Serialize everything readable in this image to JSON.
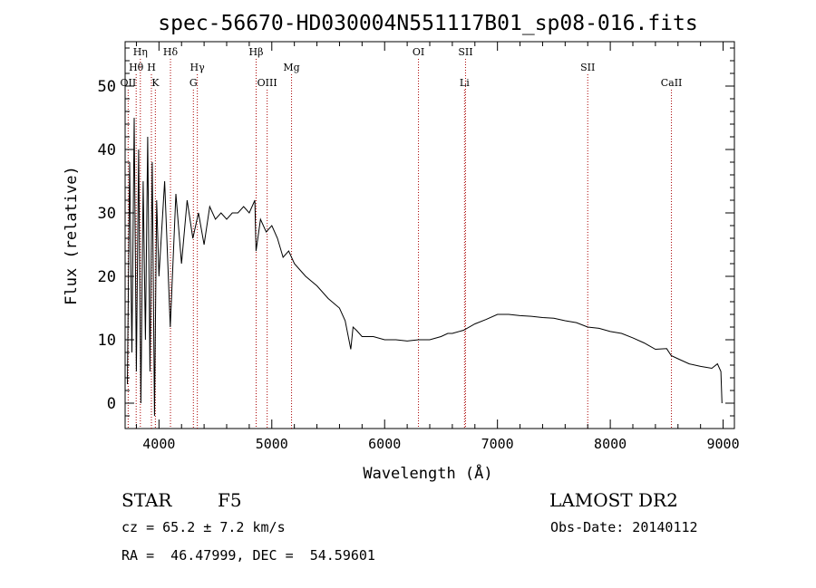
{
  "chart_data": {
    "type": "line",
    "title": "spec-56670-HD030004N551117B01_sp08-016.fits",
    "xlabel": "Wavelength (Å)",
    "ylabel": "Flux (relative)",
    "xlim": [
      3700,
      9100
    ],
    "ylim": [
      -4,
      57
    ],
    "x_ticks": [
      4000,
      5000,
      6000,
      7000,
      8000,
      9000
    ],
    "y_ticks": [
      0,
      10,
      20,
      30,
      40,
      50
    ],
    "grid": false,
    "series": [
      {
        "x": [
          3720,
          3740,
          3760,
          3780,
          3800,
          3820,
          3840,
          3860,
          3880,
          3900,
          3920,
          3940,
          3960,
          3980,
          4000,
          4050,
          4100,
          4150,
          4200,
          4250,
          4300,
          4350,
          4400,
          4450,
          4500,
          4550,
          4600,
          4650,
          4700,
          4750,
          4800,
          4850,
          4860,
          4900,
          4950,
          5000,
          5050,
          5100,
          5150,
          5200,
          5250,
          5300,
          5400,
          5500,
          5600,
          5650,
          5700,
          5720,
          5750,
          5800,
          5900,
          6000,
          6100,
          6200,
          6300,
          6400,
          6500,
          6560,
          6600,
          6700,
          6800,
          6900,
          7000,
          7100,
          7200,
          7300,
          7400,
          7500,
          7600,
          7700,
          7800,
          7900,
          8000,
          8100,
          8200,
          8300,
          8400,
          8500,
          8540,
          8600,
          8700,
          8800,
          8900,
          8950,
          8980,
          8990
        ],
        "y": [
          3,
          38,
          8,
          45,
          5,
          40,
          0,
          35,
          10,
          42,
          5,
          38,
          -2,
          32,
          20,
          35,
          12,
          33,
          22,
          32,
          26,
          30,
          25,
          31,
          29,
          30,
          29,
          30,
          30,
          31,
          30,
          32,
          24,
          29,
          27,
          28,
          26,
          23,
          24,
          22,
          21,
          20,
          18.5,
          16.5,
          15,
          13,
          8.5,
          12,
          11.5,
          10.5,
          10.5,
          10,
          10,
          9.8,
          10,
          10,
          10.5,
          11,
          11,
          11.5,
          12.5,
          13.2,
          14,
          14,
          13.8,
          13.7,
          13.5,
          13.4,
          13,
          12.7,
          12,
          11.8,
          11.3,
          11,
          10.3,
          9.5,
          8.5,
          8.6,
          7.5,
          7,
          6.2,
          5.8,
          5.5,
          6.2,
          5,
          0
        ]
      }
    ],
    "line_markers": [
      {
        "label": "OII",
        "x": 3727,
        "row": 3
      },
      {
        "label": "Hθ",
        "x": 3798,
        "row": 2
      },
      {
        "label": "Hη",
        "x": 3835,
        "row": 1
      },
      {
        "label": "H",
        "x": 3933,
        "row": 2
      },
      {
        "label": "K",
        "x": 3968,
        "row": 3
      },
      {
        "label": "Hδ",
        "x": 4102,
        "row": 1
      },
      {
        "label": "Hγ",
        "x": 4340,
        "row": 2
      },
      {
        "label": "G",
        "x": 4305,
        "row": 3
      },
      {
        "label": "Hβ",
        "x": 4861,
        "row": 1
      },
      {
        "label": "OIII",
        "x": 4959,
        "row": 3
      },
      {
        "label": "Mg",
        "x": 5175,
        "row": 2
      },
      {
        "label": "OI",
        "x": 6300,
        "row": 1
      },
      {
        "label": "SII",
        "x": 6717,
        "row": 1
      },
      {
        "label": "Li",
        "x": 6708,
        "row": 3
      },
      {
        "label": "SII",
        "x": 7800,
        "row": 2
      },
      {
        "label": "CaII",
        "x": 8542,
        "row": 3
      }
    ]
  },
  "info": {
    "class_label": "STAR",
    "subclass": "F5",
    "survey": "LAMOST DR2",
    "cz_text": "cz = 65.2 ± 7.2 km/s",
    "obs_date_text": "Obs-Date: 20140112",
    "coords_text": "RA =  46.47999, DEC =  54.59601"
  },
  "colors": {
    "spectrum": "#000000",
    "marker_lines": "#aa0000",
    "axes": "#000000"
  }
}
